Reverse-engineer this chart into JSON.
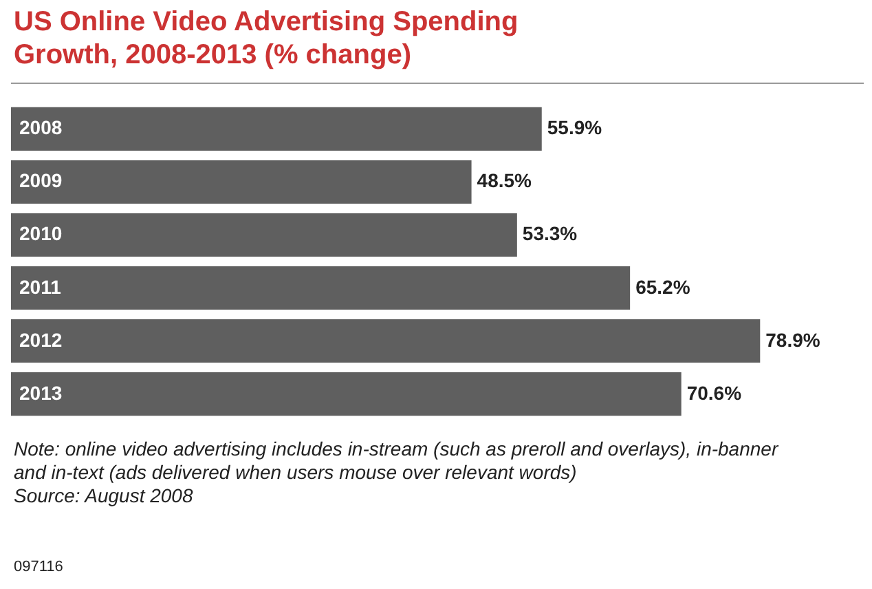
{
  "chart_data": {
    "type": "bar",
    "orientation": "horizontal",
    "title": "US Online Video Advertising Spending Growth, 2008-2013 (% change)",
    "categories": [
      "2008",
      "2009",
      "2010",
      "2011",
      "2012",
      "2013"
    ],
    "values": [
      55.9,
      48.5,
      53.3,
      65.2,
      78.9,
      70.6
    ],
    "value_labels": [
      "55.9%",
      "48.5%",
      "53.3%",
      "65.2%",
      "78.9%",
      "70.6%"
    ],
    "color": "#5f5f5f",
    "annotations": [
      "Note: online video advertising includes in-stream (such as preroll and overlays), in-banner and in-text (ads delivered when users mouse over relevant words)",
      "Source: August 2008",
      "097116"
    ]
  }
}
